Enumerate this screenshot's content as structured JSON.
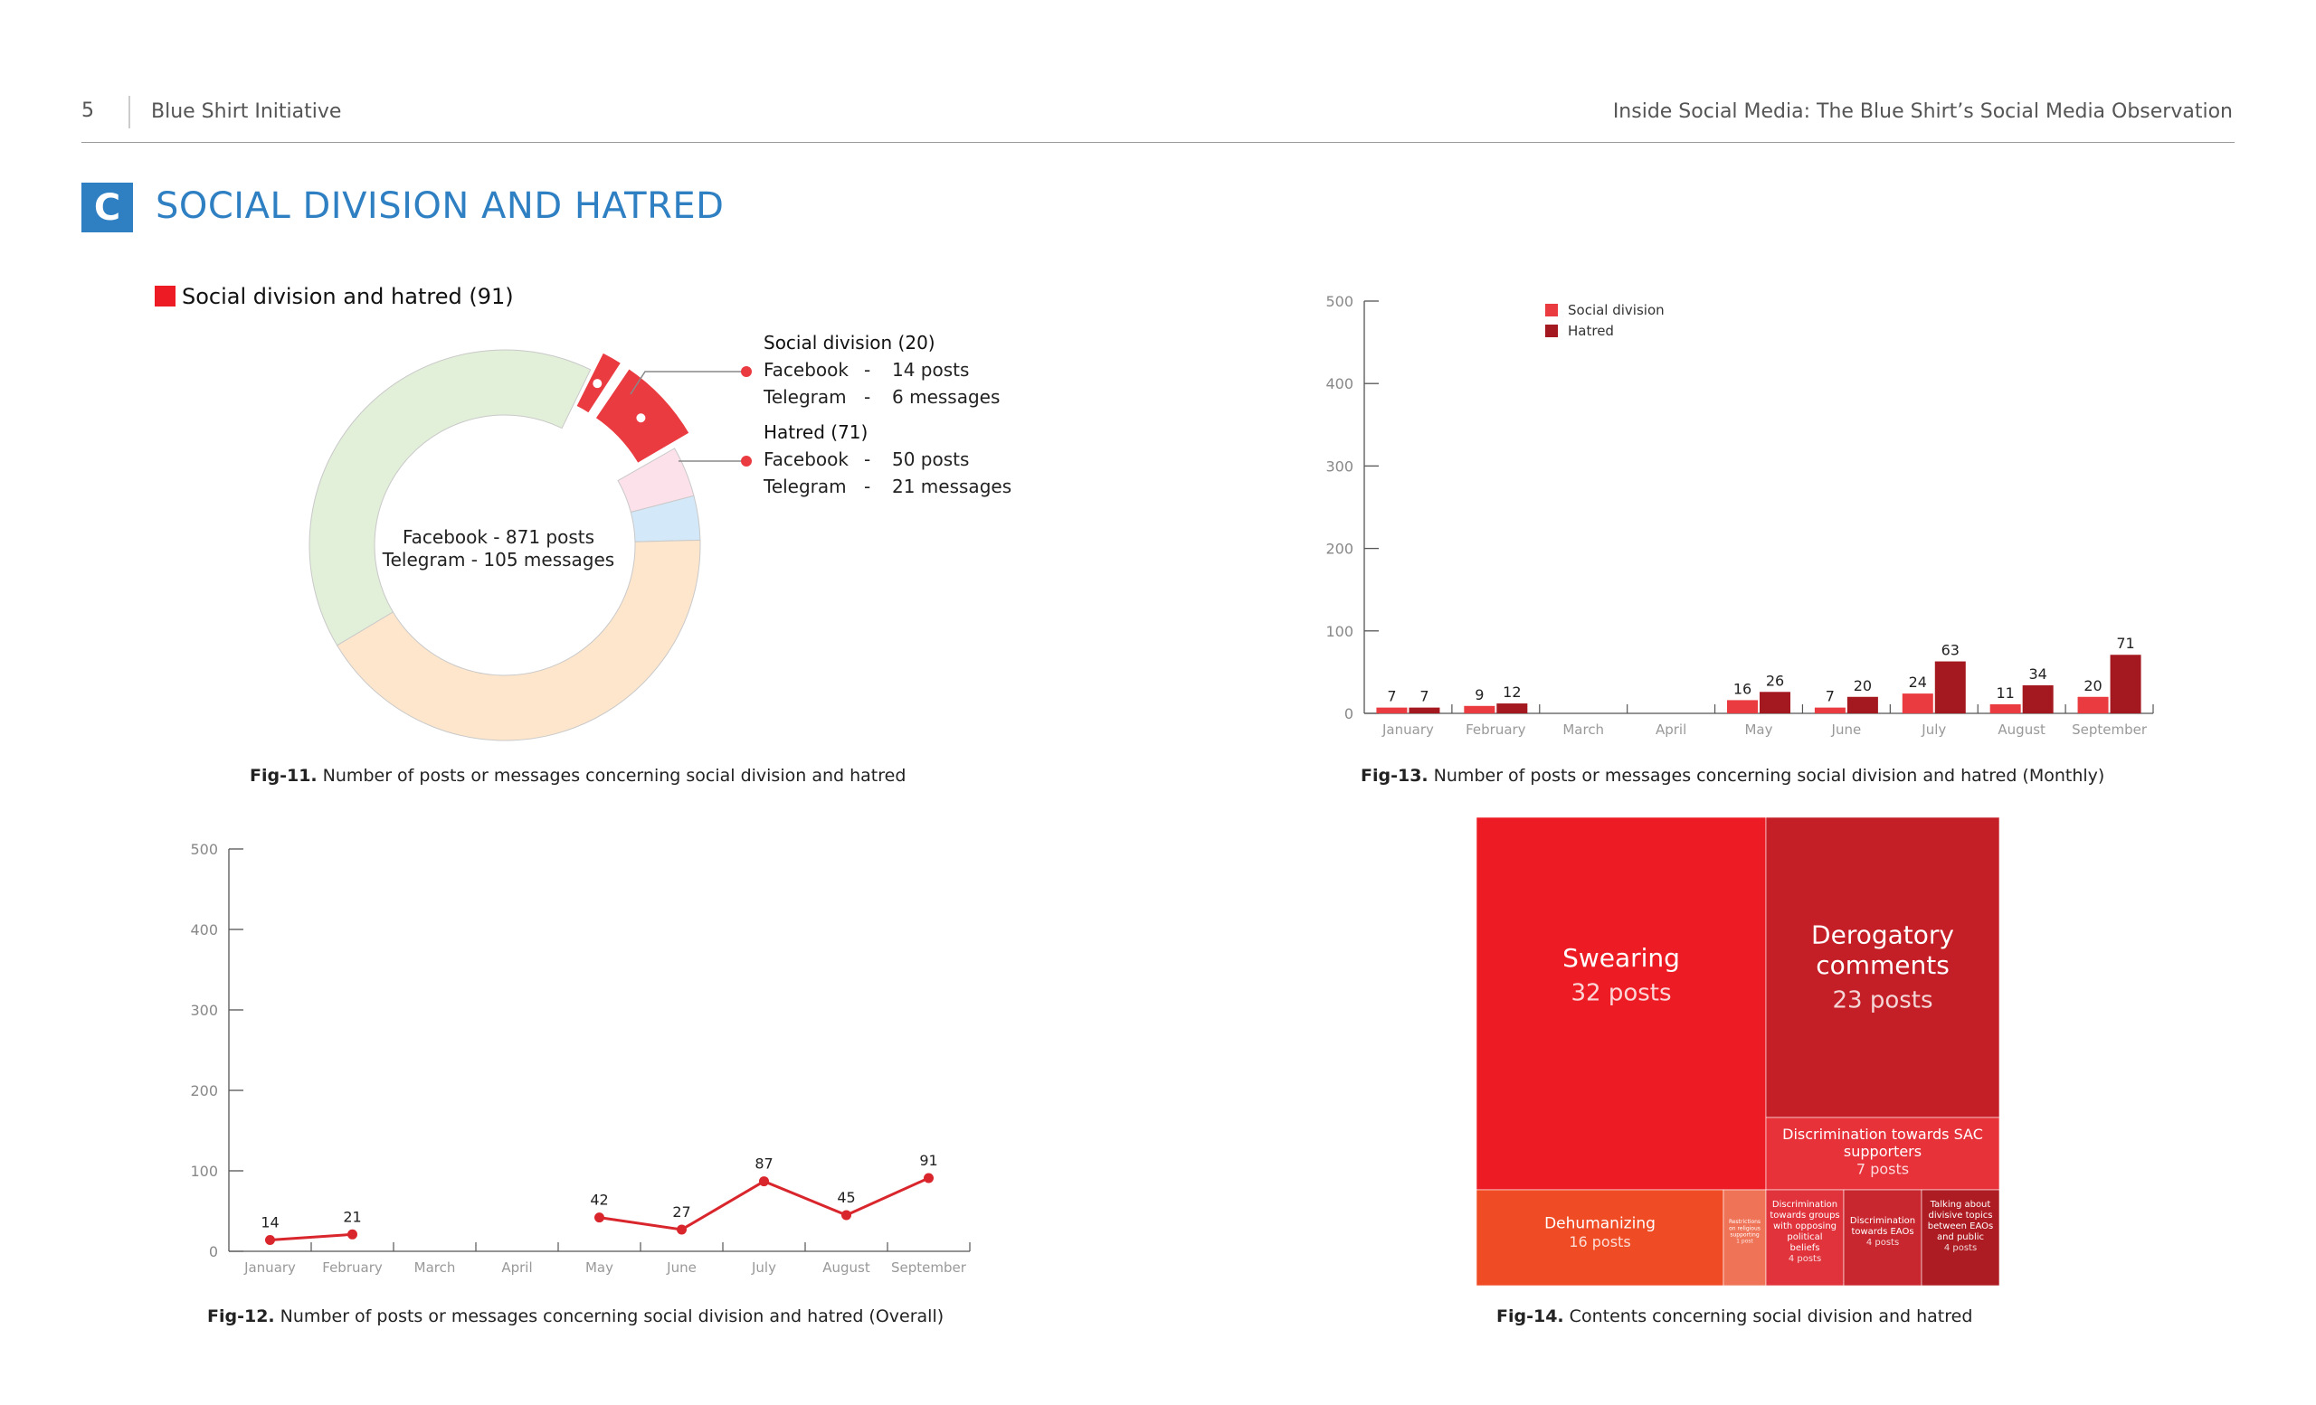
{
  "header": {
    "page_number": "5",
    "left_title": "Blue Shirt Initiative",
    "right_title": "Inside Social Media: The Blue Shirt’s Social Media Observation"
  },
  "section": {
    "badge": "C",
    "title": "SOCIAL DIVISION AND HATRED"
  },
  "colors": {
    "accent_blue": "#2f80c3",
    "red": "#ea3b41",
    "dark_red": "#a3191f",
    "line_red": "#d9262c",
    "green_ring": "#e2efd9",
    "peach_ring": "#fde6cc",
    "pink_ring": "#fce0ea",
    "blue_ring": "#d3e8f8"
  },
  "donut": {
    "legend": "Social division and hatred (91)",
    "center_line1": "Facebook - 871 posts",
    "center_line2": "Telegram - 105 messages",
    "callouts": [
      {
        "title": "Social division (20)",
        "rows": [
          {
            "platform": "Facebook",
            "dash": "-",
            "value": "14 posts"
          },
          {
            "platform": "Telegram",
            "dash": "-",
            "value": "6 messages"
          }
        ]
      },
      {
        "title": "Hatred (71)",
        "rows": [
          {
            "platform": "Facebook",
            "dash": "-",
            "value": "50 posts"
          },
          {
            "platform": "Telegram",
            "dash": "-",
            "value": "21 messages"
          }
        ]
      }
    ],
    "caption_label": "Fig-11.",
    "caption_text": " Number of posts or messages concerning social division and hatred"
  },
  "chart_data": [
    {
      "type": "pie",
      "title": "Social division and hatred (91)",
      "segments": [
        {
          "name": "Social division",
          "value": 20,
          "color": "#ea3b41"
        },
        {
          "name": "Hatred",
          "value": 71,
          "color": "#ea3b41"
        },
        {
          "value": 40,
          "color": "#fce0ea"
        },
        {
          "value": 35,
          "color": "#d3e8f8"
        },
        {
          "value": 400,
          "color": "#fde6cc"
        },
        {
          "value": 390,
          "color": "#e2efd9"
        }
      ]
    },
    {
      "type": "bar",
      "caption_label": "Fig-13.",
      "caption_text": " Number of posts or messages concerning social division and hatred (Monthly)",
      "categories": [
        "January",
        "February",
        "March",
        "April",
        "May",
        "June",
        "July",
        "August",
        "September"
      ],
      "series": [
        {
          "name": "Social division",
          "color": "#ea3b41",
          "values": [
            7,
            9,
            null,
            null,
            16,
            7,
            24,
            11,
            20
          ]
        },
        {
          "name": "Hatred",
          "color": "#a3191f",
          "values": [
            7,
            12,
            null,
            null,
            26,
            20,
            63,
            34,
            71
          ]
        }
      ],
      "ylim": [
        0,
        500
      ],
      "yticks": [
        0,
        100,
        200,
        300,
        400,
        500
      ],
      "legend_position": "top-left"
    },
    {
      "type": "line",
      "caption_label": "Fig-12.",
      "caption_text": " Number of posts or messages concerning social division and hatred (Overall)",
      "categories": [
        "January",
        "February",
        "March",
        "April",
        "May",
        "June",
        "July",
        "August",
        "September"
      ],
      "series": [
        {
          "color": "#d9262c",
          "values": [
            14,
            21,
            null,
            null,
            42,
            27,
            87,
            45,
            91
          ]
        }
      ],
      "ylim": [
        0,
        500
      ],
      "yticks": [
        0,
        100,
        200,
        300,
        400,
        500
      ]
    },
    {
      "type": "treemap",
      "caption_label": "Fig-14.",
      "caption_text": " Contents concerning social division and hatred",
      "items": [
        {
          "title": "Swearing",
          "value_text": "32 posts",
          "value": 32,
          "color": "#ed1c24"
        },
        {
          "title": "Derogatory comments",
          "value_text": "23 posts",
          "value": 23,
          "color": "#c41e26"
        },
        {
          "title": "Discrimination towards SAC supporters",
          "value_text": "7 posts",
          "value": 7,
          "color": "#e8323a"
        },
        {
          "title": "Dehumanizing",
          "value_text": "16 posts",
          "value": 16,
          "color": "#ef4b25"
        },
        {
          "title": "Restrictions on religious supporting",
          "value_text": "1 post",
          "value": 1,
          "color": "#ef7356"
        },
        {
          "title": "Discrimination towards groups with opposing political beliefs",
          "value_text": "4 posts",
          "value": 4,
          "color": "#e0333b"
        },
        {
          "title": "Discrimination towards EAOs",
          "value_text": "4 posts",
          "value": 4,
          "color": "#c9272f"
        },
        {
          "title": "Talking about divisive topics between EAOs and public",
          "value_text": "4 posts",
          "value": 4,
          "color": "#ad1c22"
        }
      ]
    }
  ]
}
